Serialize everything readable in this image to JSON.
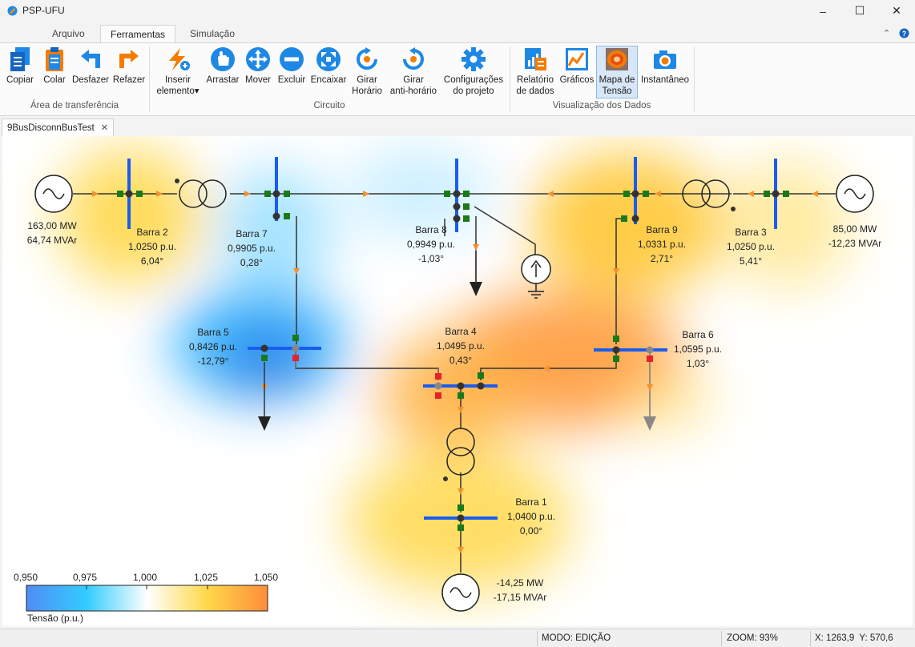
{
  "app": {
    "title": "PSP-UFU"
  },
  "menu_tabs": [
    {
      "label": "Arquivo"
    },
    {
      "label": "Ferramentas"
    },
    {
      "label": "Simulação"
    }
  ],
  "ribbon": {
    "clipboard": {
      "label": "Área de transferência",
      "copy": "Copiar",
      "paste": "Colar",
      "undo": "Desfazer",
      "redo": "Refazer"
    },
    "circuit": {
      "label": "Circuito",
      "insert_1": "Inserir",
      "insert_2": "elemento▾",
      "drag": "Arrastar",
      "move": "Mover",
      "delete": "Excluir",
      "fit": "Encaixar",
      "rot_cw_1": "Girar",
      "rot_cw_2": "Horário",
      "rot_ccw_1": "Girar",
      "rot_ccw_2": "anti-horário",
      "settings_1": "Configurações",
      "settings_2": "do projeto"
    },
    "view": {
      "label": "Visualização dos Dados",
      "report_1": "Relatório",
      "report_2": "de dados",
      "charts": "Gráficos",
      "heatmap_1": "Mapa de",
      "heatmap_2": "Tensão",
      "snapshot": "Instantâneo"
    }
  },
  "doc_tab": {
    "label": "9BusDisconnBusTest"
  },
  "buses": [
    {
      "name": "Barra 1",
      "voltage": "1,0400 p.u.",
      "angle": "0,00°"
    },
    {
      "name": "Barra 2",
      "voltage": "1,0250 p.u.",
      "angle": "6,04°"
    },
    {
      "name": "Barra 3",
      "voltage": "1,0250 p.u.",
      "angle": "5,41°"
    },
    {
      "name": "Barra 4",
      "voltage": "1,0495 p.u.",
      "angle": "0,43°"
    },
    {
      "name": "Barra 5",
      "voltage": "0,8426 p.u.",
      "angle": "-12,79°"
    },
    {
      "name": "Barra 6",
      "voltage": "1,0595 p.u.",
      "angle": "1,03°"
    },
    {
      "name": "Barra 7",
      "voltage": "0,9905 p.u.",
      "angle": "0,28°"
    },
    {
      "name": "Barra 8",
      "voltage": "0,9949 p.u.",
      "angle": "-1,03°"
    },
    {
      "name": "Barra 9",
      "voltage": "1,0331 p.u.",
      "angle": "2,71°"
    }
  ],
  "generators": [
    {
      "p": "163,00 MW",
      "q": "64,74 MVAr"
    },
    {
      "p": "85,00 MW",
      "q": "-12,23 MVAr"
    },
    {
      "p": "-14,25 MW",
      "q": "-17,15 MVAr"
    }
  ],
  "legend": {
    "title": "Tensão (p.u.)",
    "ticks": [
      "0,950",
      "0,975",
      "1,000",
      "1,025",
      "1,050"
    ],
    "colors": [
      "#4f8df5",
      "#33ccff",
      "#ffffff",
      "#ffd84a",
      "#ff8c3c"
    ]
  },
  "status": {
    "mode": "MODO: EDIÇÃO",
    "zoom": "ZOOM: 93%",
    "coords": "X: 1263,9  Y: 570,6"
  }
}
